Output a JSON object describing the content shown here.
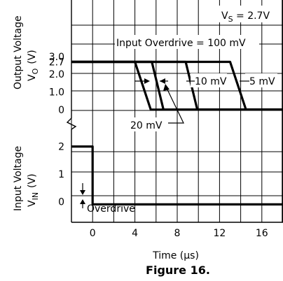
{
  "chart_data": [
    {
      "type": "line",
      "ylabel": [
        "Output Voltage",
        "V",
        "O",
        "(V)"
      ],
      "ylim": [
        -0.6,
        6.2
      ],
      "y_ticks": [
        0,
        1.0,
        2.0,
        2.7,
        3.0
      ],
      "y_tick_labels": [
        "0",
        "1.0",
        "2.0",
        "2.7",
        "3.0"
      ],
      "grid": true,
      "annotations": {
        "supply": {
          "prefix": "V",
          "sub": "S",
          "suffix": " = 2.7V"
        },
        "overdrive_title": "Input Overdrive = 100 mV",
        "label_10mV": "10 mV",
        "label_5mV": "5 mV",
        "label_20mV": "20 mV"
      },
      "series": [
        {
          "x": [
            -2.0,
            4.0,
            5.5,
            18.0
          ],
          "y": [
            2.7,
            2.7,
            0,
            0
          ]
        },
        {
          "x": [
            -2.0,
            5.6,
            6.7,
            18.0
          ],
          "y": [
            2.7,
            2.7,
            0,
            0
          ]
        },
        {
          "x": [
            -2.0,
            8.8,
            9.9,
            18.0
          ],
          "y": [
            2.7,
            2.7,
            0,
            0
          ]
        },
        {
          "x": [
            -2.0,
            13.0,
            14.5,
            18.0
          ],
          "y": [
            2.7,
            2.7,
            0,
            0
          ]
        }
      ]
    },
    {
      "type": "line",
      "ylabel": [
        "Input Voltage",
        "V",
        "IN",
        "(V)"
      ],
      "ylim": [
        -0.7,
        2.6
      ],
      "y_ticks": [
        0,
        1,
        2
      ],
      "y_tick_labels": [
        "0",
        "1",
        "2"
      ],
      "grid": true,
      "annotations": {
        "overdrive": "Overdrive"
      },
      "series": [
        {
          "x": [
            -2.0,
            0,
            0,
            18.0
          ],
          "y": [
            2,
            2,
            -0.1,
            -0.1
          ]
        }
      ]
    }
  ],
  "x_axis": {
    "xlim": [
      -2.0,
      18.0
    ],
    "ticks": [
      0,
      4,
      8,
      12,
      16
    ],
    "tick_labels": [
      "0",
      "4",
      "8",
      "12",
      "16"
    ],
    "xlabel": "Time (µs)"
  },
  "caption": "Figure 16."
}
